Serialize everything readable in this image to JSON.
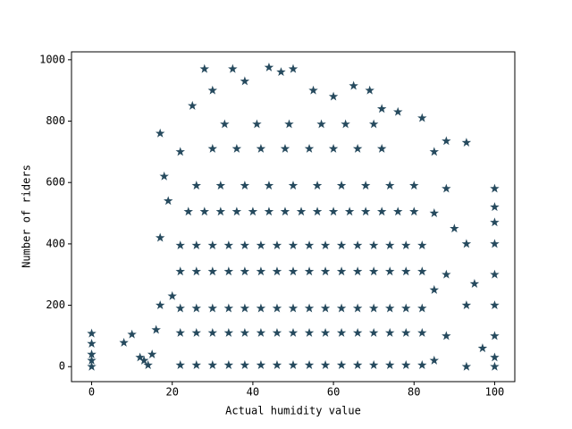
{
  "chart_data": {
    "type": "scatter",
    "x_label": "Actual humidity value",
    "y_label": "Number of riders",
    "color": "#264a5e",
    "marker": "star",
    "xlim": [
      -5,
      105
    ],
    "ylim": [
      -48.8,
      1025.8
    ],
    "xticks": [
      0,
      20,
      40,
      60,
      80,
      100
    ],
    "yticks": [
      0,
      200,
      400,
      600,
      800,
      1000
    ],
    "x": [
      0,
      0,
      0,
      0,
      0,
      8,
      10,
      12,
      13,
      14,
      15,
      16,
      17,
      17,
      17,
      18,
      19,
      20,
      22,
      25,
      28,
      30,
      35,
      38,
      44,
      47,
      50,
      55,
      60,
      65,
      69,
      72,
      76,
      82,
      88,
      93,
      100,
      100,
      100,
      100,
      100,
      100,
      100,
      100,
      100,
      97,
      95,
      93,
      93,
      93,
      90,
      88,
      88,
      88,
      85,
      85,
      85,
      85,
      22,
      26,
      30,
      34,
      38,
      42,
      46,
      50,
      54,
      58,
      62,
      66,
      70,
      74,
      78,
      82,
      22,
      26,
      30,
      34,
      38,
      42,
      46,
      50,
      54,
      58,
      62,
      66,
      70,
      74,
      78,
      82,
      22,
      26,
      30,
      34,
      38,
      42,
      46,
      50,
      54,
      58,
      62,
      66,
      70,
      74,
      78,
      82,
      22,
      26,
      30,
      34,
      38,
      42,
      46,
      50,
      54,
      58,
      62,
      66,
      70,
      74,
      78,
      82,
      22,
      26,
      30,
      34,
      38,
      42,
      46,
      50,
      54,
      58,
      62,
      66,
      70,
      74,
      78,
      82,
      24,
      28,
      32,
      36,
      40,
      44,
      48,
      52,
      56,
      60,
      64,
      68,
      72,
      76,
      80,
      26,
      32,
      38,
      44,
      50,
      56,
      62,
      68,
      74,
      80,
      30,
      36,
      42,
      48,
      54,
      60,
      66,
      72,
      33,
      41,
      49,
      57,
      63,
      70
    ],
    "values": [
      0,
      20,
      40,
      75,
      108,
      78,
      105,
      30,
      20,
      5,
      40,
      120,
      200,
      420,
      760,
      620,
      540,
      230,
      700,
      850,
      970,
      900,
      970,
      930,
      975,
      960,
      970,
      900,
      880,
      915,
      900,
      840,
      830,
      810,
      735,
      730,
      580,
      520,
      470,
      400,
      300,
      200,
      100,
      30,
      0,
      60,
      270,
      400,
      200,
      0,
      450,
      580,
      300,
      100,
      700,
      500,
      250,
      20,
      5,
      5,
      5,
      5,
      5,
      5,
      5,
      5,
      5,
      5,
      5,
      5,
      5,
      5,
      5,
      5,
      110,
      110,
      110,
      110,
      110,
      110,
      110,
      110,
      110,
      110,
      110,
      110,
      110,
      110,
      110,
      110,
      190,
      190,
      190,
      190,
      190,
      190,
      190,
      190,
      190,
      190,
      190,
      190,
      190,
      190,
      190,
      190,
      310,
      310,
      310,
      310,
      310,
      310,
      310,
      310,
      310,
      310,
      310,
      310,
      310,
      310,
      310,
      310,
      395,
      395,
      395,
      395,
      395,
      395,
      395,
      395,
      395,
      395,
      395,
      395,
      395,
      395,
      395,
      395,
      505,
      505,
      505,
      505,
      505,
      505,
      505,
      505,
      505,
      505,
      505,
      505,
      505,
      505,
      505,
      590,
      590,
      590,
      590,
      590,
      590,
      590,
      590,
      590,
      590,
      710,
      710,
      710,
      710,
      710,
      710,
      710,
      710,
      790,
      790,
      790,
      790,
      790,
      790
    ]
  }
}
